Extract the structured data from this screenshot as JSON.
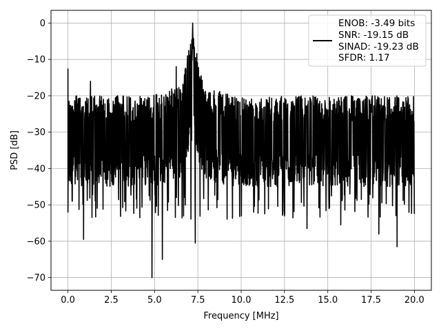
{
  "chart_data": {
    "type": "line",
    "title": "",
    "xlabel": "Frequency [MHz]",
    "ylabel": "PSD [dB]",
    "xlim": [
      -0.98,
      20.98
    ],
    "ylim": [
      -73.5,
      3.5
    ],
    "xticks": [
      0.0,
      2.5,
      5.0,
      7.5,
      10.0,
      12.5,
      15.0,
      17.5,
      20.0
    ],
    "xtick_labels": [
      "0.0",
      "2.5",
      "5.0",
      "7.5",
      "10.0",
      "12.5",
      "15.0",
      "17.5",
      "20.0"
    ],
    "yticks": [
      0,
      -10,
      -20,
      -30,
      -40,
      -50,
      -60,
      -70
    ],
    "ytick_labels": [
      "0",
      "−10",
      "−20",
      "−30",
      "−40",
      "−50",
      "−60",
      "−70"
    ],
    "grid": true,
    "series_color": "#000000",
    "noise_floor": {
      "freq_range_mhz": [
        0,
        20
      ],
      "band_top_db": -20,
      "band_bottom_db": -45,
      "typical_db": -31
    },
    "peak": {
      "freq_mhz": 7.2,
      "psd_db": 0
    },
    "spurs": [
      {
        "freq_mhz": 0.0,
        "psd_db": -12.5
      },
      {
        "freq_mhz": 6.25,
        "psd_db": -12
      },
      {
        "freq_mhz": 6.9,
        "psd_db": -9
      },
      {
        "freq_mhz": 1.3,
        "psd_db": -16
      },
      {
        "freq_mhz": 4.85,
        "psd_db": -70
      },
      {
        "freq_mhz": 5.45,
        "psd_db": -65
      },
      {
        "freq_mhz": 7.35,
        "psd_db": -60.5
      },
      {
        "freq_mhz": 0.9,
        "psd_db": -59.5
      },
      {
        "freq_mhz": 19.0,
        "psd_db": -61.5
      },
      {
        "freq_mhz": 17.95,
        "psd_db": -58
      },
      {
        "freq_mhz": 13.8,
        "psd_db": -56.5
      },
      {
        "freq_mhz": 15.75,
        "psd_db": -55.5
      },
      {
        "freq_mhz": 0.0,
        "psd_db": -52
      }
    ],
    "legend": {
      "position": "top-right",
      "entries": [
        "ENOB: -3.49 bits",
        "SNR: -19.15 dB",
        "SINAD: -19.23 dB",
        "SFDR: 1.17"
      ]
    }
  }
}
